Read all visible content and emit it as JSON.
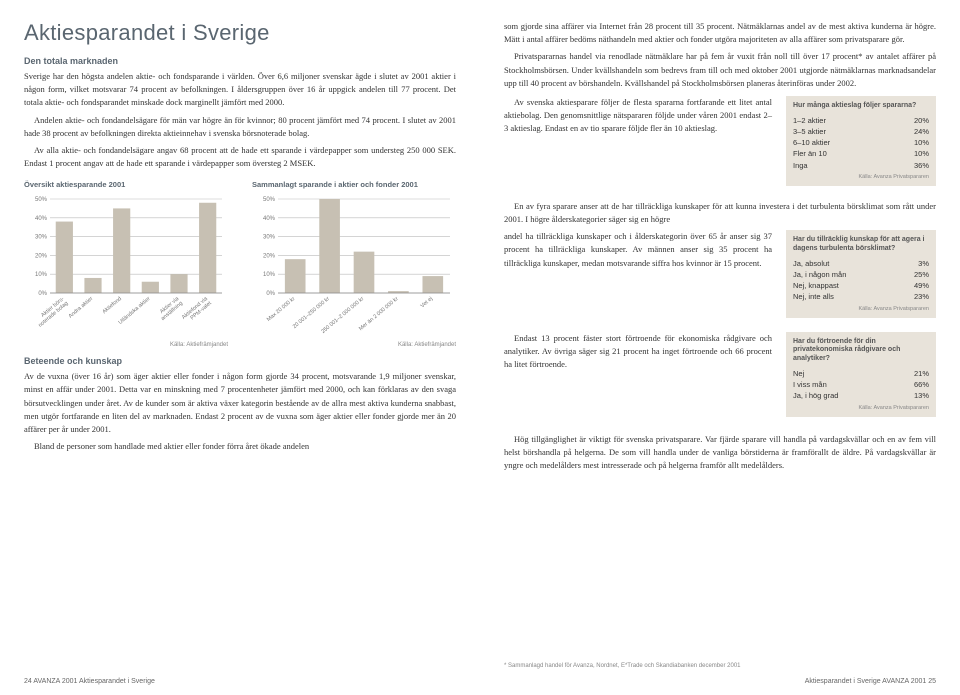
{
  "page_left": {
    "title": "Aktiesparandet i Sverige",
    "sub1": "Den totala marknaden",
    "p1": "Sverige har den högsta andelen aktie- och fondsparande i världen. Över 6,6 miljoner svenskar ägde i slutet av 2001 aktier i någon form, vilket motsvarar 74 procent av befolkningen. I åldersgruppen över 16 år uppgick andelen till 77 procent. Det totala aktie- och fondsparandet minskade dock marginellt jämfört med 2000.",
    "p2": "Andelen aktie- och fondandelsägare för män var högre än för kvinnor; 80 procent jämfört med 74 procent. I slutet av 2001 hade 38 procent av befolkningen direkta aktieinnehav i svenska börsnoterade bolag.",
    "p3": "Av alla aktie- och fondandelsägare angav 68 procent att de hade ett sparande i värdepapper som understeg 250 000 SEK. Endast 1 procent angav att de hade ett sparande i värdepapper som översteg 2 MSEK.",
    "chart1": {
      "title": "Översikt aktiesparande 2001",
      "ylim": 50,
      "ytick": 10,
      "bg": "#ffffff",
      "bar_color": "#c7c0b3",
      "axis_color": "#bbbbbb",
      "categories": [
        "Aktier börs-\nnoterade bolag",
        "Andra aktier",
        "Aktiefond",
        "Utländska aktier",
        "Aktier via\nanställning",
        "Aktiefond via\nPPM-valet"
      ],
      "values": [
        38,
        8,
        45,
        6,
        10,
        48
      ],
      "source": "Källa: Aktiefrämjandet"
    },
    "chart2": {
      "title": "Sammanlagt sparande i aktier och fonder 2001",
      "ylim": 50,
      "ytick": 10,
      "bg": "#ffffff",
      "bar_color": "#c7c0b3",
      "axis_color": "#bbbbbb",
      "categories": [
        "Max 20 000 kr",
        "20 001–250 000 kr",
        "250 001–2 000 000 kr",
        "Mer än 2 000 000 kr",
        "Vet ej"
      ],
      "values": [
        18,
        50,
        22,
        1,
        9
      ],
      "source": "Källa: Aktiefrämjandet"
    },
    "sub2": "Beteende och kunskap",
    "p4": "Av de vuxna (över 16 år) som äger aktier eller fonder i någon form gjorde 34 procent, motsvarande 1,9 miljoner svenskar, minst en affär under 2001. Detta var en minskning med 7 procentenheter jämfört med 2000, och kan förklaras av den svaga börsutvecklingen under året. Av de kunder som är aktiva växer kategorin bestående av de allra mest aktiva kunderna snabbast, men utgör fortfarande en liten del av marknaden. Endast 2 procent av de vuxna som äger aktier eller fonder gjorde mer än 20 affärer per år under 2001.",
    "p5": "Bland de personer som handlade med aktier eller fonder förra året ökade andelen",
    "footer": "24 AVANZA 2001 Aktiesparandet i Sverige"
  },
  "page_right": {
    "p1": "som gjorde sina affärer via Internet från 28 procent till 35 procent. Nätmäklarnas andel av de mest aktiva kunderna är högre. Mätt i antal affärer bedöms näthandeln med aktier och fonder utgöra majoriteten av alla affärer som privatsparare gör.",
    "p2": "Privatspararnas handel via renodlade nätmäklare har på fem år vuxit från noll till över 17 procent* av antalet affärer på Stockholmsbörsen. Under kvällshandeln som bedrevs fram till och med oktober 2001 utgjorde nätmäklarnas marknadsandelar upp till 40 procent av börshandeln. Kvällshandel på Stockholmsbörsen planeras återinföras under 2002.",
    "p3": "Av svenska aktiesparare följer de flesta spararna fortfarande ett litet antal aktiebolag. Den genomsnittlige nätspararen följde under våren 2001 endast 2–3 aktieslag. Endast en av tio sparare följde fler än 10 aktieslag.",
    "box1": {
      "title": "Hur många aktieslag följer spararna?",
      "rows": [
        [
          "1–2 aktier",
          "20%"
        ],
        [
          "3–5 aktier",
          "24%"
        ],
        [
          "6–10 aktier",
          "10%"
        ],
        [
          "Fler än 10",
          "10%"
        ],
        [
          "Inga",
          "36%"
        ]
      ],
      "source": "Källa: Avanza Privatspararen"
    },
    "p4": "En av fyra sparare anser att de har tillräckliga kunskaper för att kunna investera i det turbulenta börsklimat som rått under 2001. I högre ålderskategorier säger sig en högre",
    "p5": "andel ha tillräckliga kunskaper och i ålderskategorin över 65 år anser sig 37 procent ha tillräckliga kunskaper. Av männen anser sig 35 procent ha tillräckliga kunskaper, medan motsvarande siffra hos kvinnor är 15 procent.",
    "box2": {
      "title": "Har du tillräcklig kunskap för att agera i dagens turbulenta börsklimat?",
      "rows": [
        [
          "Ja, absolut",
          "3%"
        ],
        [
          "Ja, i någon mån",
          "25%"
        ],
        [
          "Nej, knappast",
          "49%"
        ],
        [
          "Nej, inte alls",
          "23%"
        ]
      ],
      "source": "Källa: Avanza Privatspararen"
    },
    "p6": "Endast 13 procent fäster stort förtroende för ekonomiska rådgivare och analytiker. Av övriga säger sig 21 procent ha inget förtroende och 66 procent ha litet förtroende.",
    "box3": {
      "title": "Har du förtroende för din privatekonomiska rådgivare och analytiker?",
      "rows": [
        [
          "Nej",
          "21%"
        ],
        [
          "I viss mån",
          "66%"
        ],
        [
          "Ja, i hög grad",
          "13%"
        ]
      ],
      "source": "Källa: Avanza Privatspararen"
    },
    "p7": "Hög tillgänglighet är viktigt för svenska privatsparare. Var fjärde sparare vill handla på vardagskvällar och en av fem vill helst börshandla på helgerna. De som vill handla under de vanliga börstiderna är framförallt de äldre. På vardagskvällar är yngre och medelålders mest intresserade och på helgerna framför allt medelålders.",
    "footnote": "* Sammanlagd handel för Avanza, Nordnet, E*Trade och Skandiabanken december 2001",
    "footer": "Aktiesparandet i Sverige AVANZA 2001 25"
  }
}
